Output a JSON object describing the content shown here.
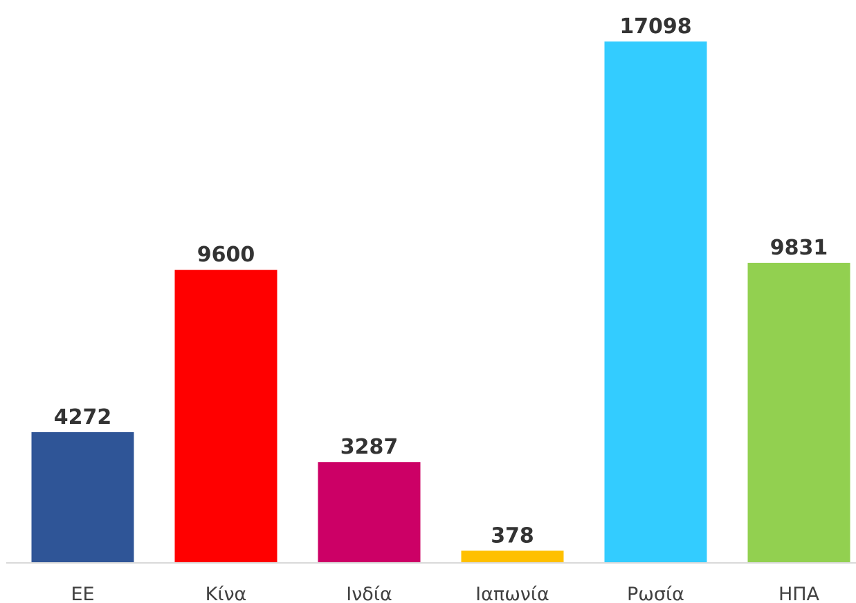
{
  "chart_data": {
    "type": "bar",
    "categories": [
      "ΕΕ",
      "Κίνα",
      "Ινδία",
      "Ιαπωνία",
      "Ρωσία",
      "ΗΠΑ"
    ],
    "values": [
      4272,
      9600,
      3287,
      378,
      17098,
      9831
    ],
    "data_labels": [
      "4272",
      "9600",
      "3287",
      "378",
      "17098",
      "9831"
    ],
    "colors": [
      "#2F5597",
      "#FF0000",
      "#CC0066",
      "#FFC000",
      "#33CCFF",
      "#92D050"
    ],
    "axis_color": "#D9D9D9",
    "ylim": [
      0,
      17098
    ],
    "grid": false,
    "legend": "none"
  }
}
